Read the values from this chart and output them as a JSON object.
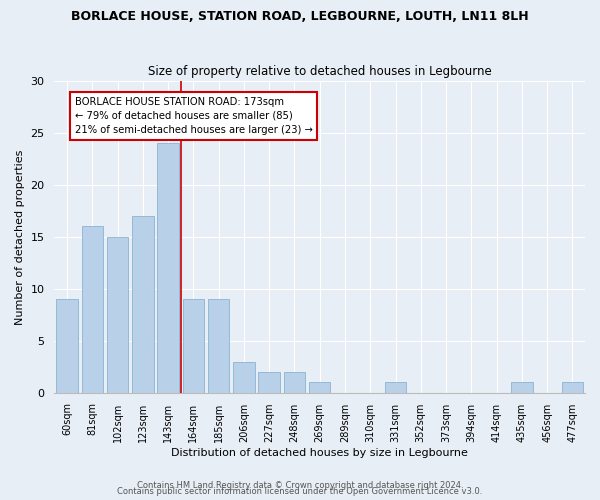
{
  "title": "BORLACE HOUSE, STATION ROAD, LEGBOURNE, LOUTH, LN11 8LH",
  "subtitle": "Size of property relative to detached houses in Legbourne",
  "xlabel": "Distribution of detached houses by size in Legbourne",
  "ylabel": "Number of detached properties",
  "categories": [
    "60sqm",
    "81sqm",
    "102sqm",
    "123sqm",
    "143sqm",
    "164sqm",
    "185sqm",
    "206sqm",
    "227sqm",
    "248sqm",
    "269sqm",
    "289sqm",
    "310sqm",
    "331sqm",
    "352sqm",
    "373sqm",
    "394sqm",
    "414sqm",
    "435sqm",
    "456sqm",
    "477sqm"
  ],
  "values": [
    9,
    16,
    15,
    17,
    24,
    9,
    9,
    3,
    2,
    2,
    1,
    0,
    0,
    1,
    0,
    0,
    0,
    0,
    1,
    0,
    1
  ],
  "bar_color": "#b8d0e8",
  "bar_edge_color": "#8ab4d4",
  "red_line_after_index": 4,
  "annotation_text": "BORLACE HOUSE STATION ROAD: 173sqm\n← 79% of detached houses are smaller (85)\n21% of semi-detached houses are larger (23) →",
  "annotation_box_color": "#ffffff",
  "annotation_box_edge": "#cc0000",
  "ylim": [
    0,
    30
  ],
  "yticks": [
    0,
    5,
    10,
    15,
    20,
    25,
    30
  ],
  "footer1": "Contains HM Land Registry data © Crown copyright and database right 2024.",
  "footer2": "Contains public sector information licensed under the Open Government Licence v3.0.",
  "bg_color": "#e8eef5",
  "plot_bg_color": "#e8eef5"
}
